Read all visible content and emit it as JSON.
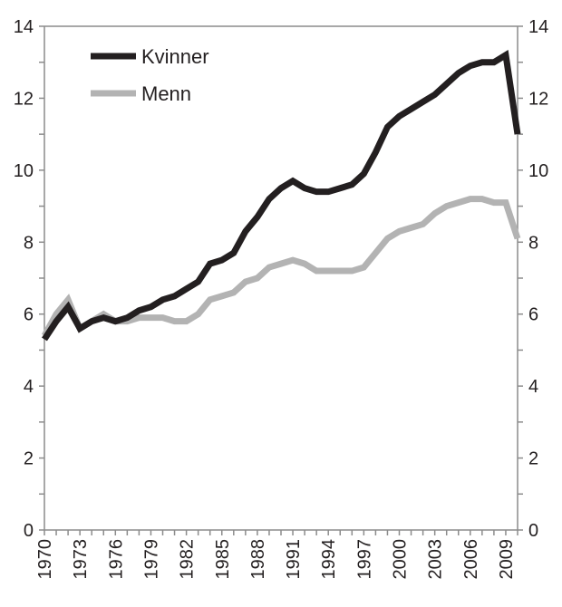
{
  "chart_data": {
    "type": "line",
    "title": "",
    "xlabel": "",
    "ylabel": "",
    "x": [
      1970,
      1971,
      1972,
      1973,
      1974,
      1975,
      1976,
      1977,
      1978,
      1979,
      1980,
      1981,
      1982,
      1983,
      1984,
      1985,
      1986,
      1987,
      1988,
      1989,
      1990,
      1991,
      1992,
      1993,
      1994,
      1995,
      1996,
      1997,
      1998,
      1999,
      2000,
      2001,
      2002,
      2003,
      2004,
      2005,
      2006,
      2007,
      2008,
      2009,
      2010
    ],
    "xlim": [
      1970,
      2010
    ],
    "xticks": [
      "1970",
      "1973",
      "1976",
      "1979",
      "1982",
      "1985",
      "1988",
      "1991",
      "1994",
      "1997",
      "2000",
      "2003",
      "2006",
      "2009"
    ],
    "ylim": [
      0,
      14
    ],
    "yticks": [
      "0",
      "2",
      "4",
      "6",
      "8",
      "10",
      "12",
      "14"
    ],
    "secondary_y_axis": true,
    "grid": false,
    "legend_position": "top-left",
    "series": [
      {
        "name": "Kvinner",
        "color": "#231f20",
        "values": [
          5.3,
          5.8,
          6.2,
          5.6,
          5.8,
          5.9,
          5.8,
          5.9,
          6.1,
          6.2,
          6.4,
          6.5,
          6.7,
          6.9,
          7.4,
          7.5,
          7.7,
          8.3,
          8.7,
          9.2,
          9.5,
          9.7,
          9.5,
          9.4,
          9.4,
          9.5,
          9.6,
          9.9,
          10.5,
          11.2,
          11.5,
          11.7,
          11.9,
          12.1,
          12.4,
          12.7,
          12.9,
          13.0,
          13.0,
          13.2,
          11.0
        ]
      },
      {
        "name": "Menn",
        "color": "#b3b3b3",
        "values": [
          5.4,
          6.0,
          6.4,
          5.6,
          5.8,
          6.0,
          5.8,
          5.8,
          5.9,
          5.9,
          5.9,
          5.8,
          5.8,
          6.0,
          6.4,
          6.5,
          6.6,
          6.9,
          7.0,
          7.3,
          7.4,
          7.5,
          7.4,
          7.2,
          7.2,
          7.2,
          7.2,
          7.3,
          7.7,
          8.1,
          8.3,
          8.4,
          8.5,
          8.8,
          9.0,
          9.1,
          9.2,
          9.2,
          9.1,
          9.1,
          8.1
        ]
      }
    ]
  }
}
